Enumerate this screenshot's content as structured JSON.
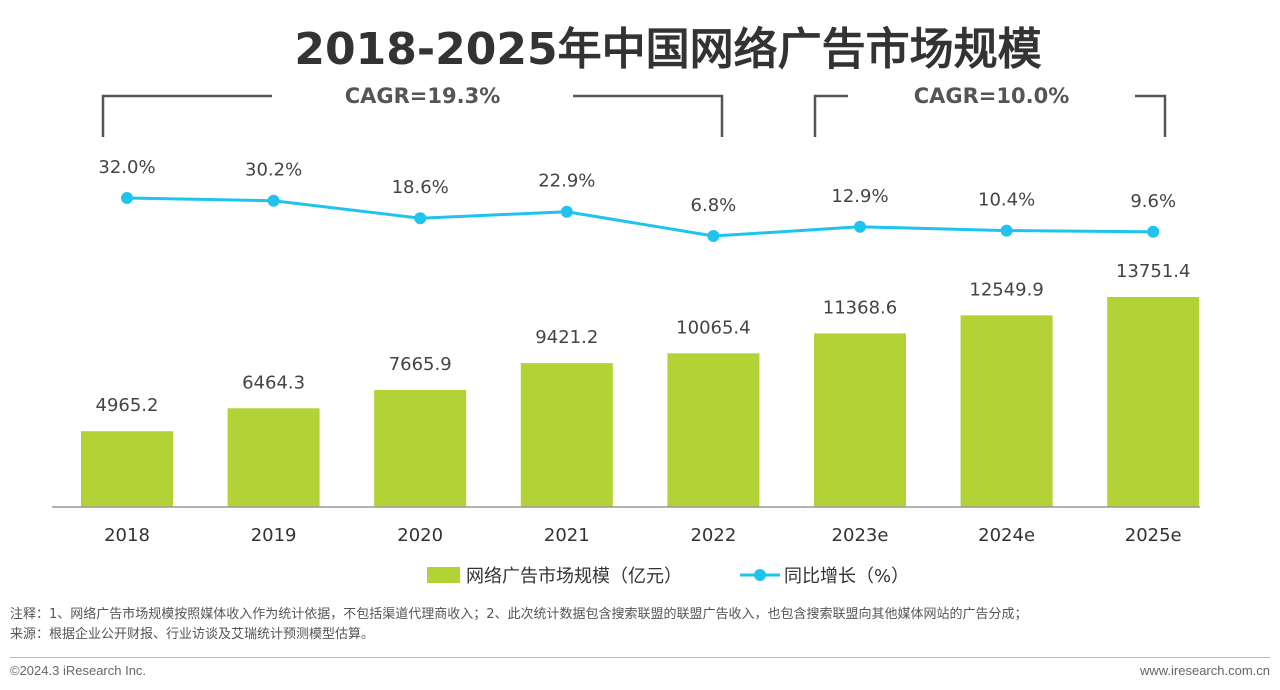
{
  "chart_data": {
    "type": "bar+line",
    "title": "2018-2025年中国网络广告市场规模",
    "categories": [
      "2018",
      "2019",
      "2020",
      "2021",
      "2022",
      "2023e",
      "2024e",
      "2025e"
    ],
    "series": [
      {
        "name": "网络广告市场规模（亿元）",
        "type": "bar",
        "color": "#b2d235",
        "values": [
          4965.2,
          6464.3,
          7665.9,
          9421.2,
          10065.4,
          11368.6,
          12549.9,
          13751.4
        ],
        "labels": [
          "4965.2",
          "6464.3",
          "7665.9",
          "9421.2",
          "10065.4",
          "11368.6",
          "12549.9",
          "13751.4"
        ]
      },
      {
        "name": "同比增长（%）",
        "type": "line",
        "color": "#1fc4ee",
        "values": [
          32.0,
          30.2,
          18.6,
          22.9,
          6.8,
          12.9,
          10.4,
          9.6
        ],
        "labels": [
          "32.0%",
          "30.2%",
          "18.6%",
          "22.9%",
          "6.8%",
          "12.9%",
          "10.4%",
          "9.6%"
        ]
      }
    ],
    "annotations": [
      {
        "text": "CAGR=19.3%",
        "from": "2018",
        "to": "2022"
      },
      {
        "text": "CAGR=10.0%",
        "from": "2023e",
        "to": "2025e"
      }
    ],
    "legend": "bottom",
    "grid": false
  },
  "notes": {
    "note": "注释：1、网络广告市场规模按照媒体收入作为统计依据，不包括渠道代理商收入；2、此次统计数据包含搜索联盟的联盟广告收入，也包含搜索联盟向其他媒体网站的广告分成；",
    "source": "来源：根据企业公开财报、行业访谈及艾瑞统计预测模型估算。"
  },
  "footer": {
    "copyright": "©2024.3 iResearch Inc.",
    "website": "www.iresearch.com.cn"
  }
}
